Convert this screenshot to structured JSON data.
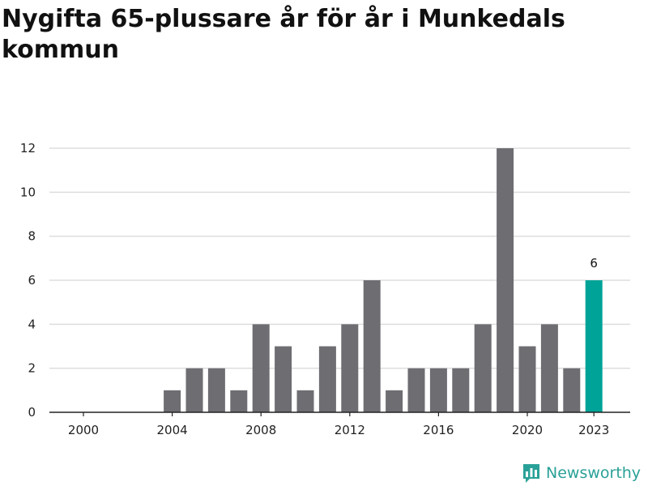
{
  "title": "Nygifta 65-plussare år för år i Munkedals kommun",
  "branding": {
    "name": "Newsworthy",
    "logo_icon": "bar-chart-bubble-icon"
  },
  "colors": {
    "bar": "#6e6d72",
    "highlight": "#00a398",
    "grid": "#dddddd",
    "axis": "#222222"
  },
  "chart_data": {
    "type": "bar",
    "title": "Nygifta 65-plussare år för år i Munkedals kommun",
    "xlabel": "",
    "ylabel": "",
    "categories": [
      2000,
      2001,
      2002,
      2003,
      2004,
      2005,
      2006,
      2007,
      2008,
      2009,
      2010,
      2011,
      2012,
      2013,
      2014,
      2015,
      2016,
      2017,
      2018,
      2019,
      2020,
      2021,
      2022,
      2023
    ],
    "values": [
      0,
      0,
      0,
      0,
      1,
      2,
      2,
      1,
      4,
      3,
      1,
      3,
      4,
      6,
      1,
      2,
      2,
      2,
      4,
      12,
      3,
      4,
      2,
      6
    ],
    "highlight_category": 2023,
    "data_labels": [
      {
        "category": 2023,
        "text": "6"
      }
    ],
    "x_tick_labels": [
      "2000",
      "2004",
      "2008",
      "2012",
      "2016",
      "2020",
      "2023"
    ],
    "y_tick_labels": [
      "0",
      "2",
      "4",
      "6",
      "8",
      "10",
      "12"
    ],
    "ylim": [
      0,
      12
    ],
    "grid": true,
    "legend": "none"
  }
}
